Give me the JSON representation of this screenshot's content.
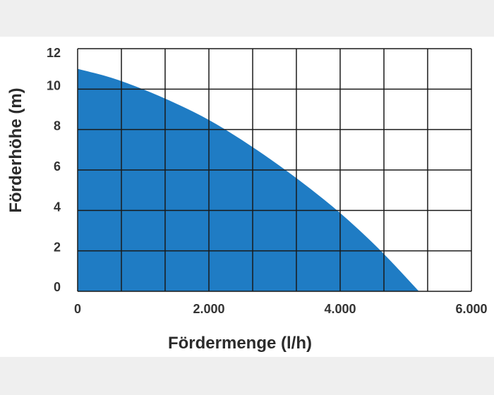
{
  "chart_data": {
    "type": "area",
    "title": "",
    "xlabel": "Fördermenge (l/h)",
    "ylabel": "Förderhöhe (m)",
    "xlim": [
      0,
      6000
    ],
    "ylim": [
      0,
      12
    ],
    "x_tick_labels": [
      {
        "value": 0,
        "label": "0"
      },
      {
        "value": 2000,
        "label": "2.000"
      },
      {
        "value": 4000,
        "label": "4.000"
      },
      {
        "value": 6000,
        "label": "6.000"
      }
    ],
    "y_tick_labels": [
      {
        "value": 0,
        "label": "0"
      },
      {
        "value": 2,
        "label": "2"
      },
      {
        "value": 4,
        "label": "4"
      },
      {
        "value": 6,
        "label": "6"
      },
      {
        "value": 8,
        "label": "8"
      },
      {
        "value": 10,
        "label": "10"
      },
      {
        "value": 12,
        "label": "12"
      }
    ],
    "x_grid": [
      0,
      667,
      1333,
      2000,
      2667,
      3333,
      4000,
      4667,
      5333,
      6000
    ],
    "y_grid": [
      0,
      2,
      4,
      6,
      8,
      10,
      12
    ],
    "grid": true,
    "series": [
      {
        "color": "#1f7cc4",
        "points": [
          {
            "x": 0,
            "y": 11.0
          },
          {
            "x": 500,
            "y": 10.6
          },
          {
            "x": 1000,
            "y": 10.0
          },
          {
            "x": 1500,
            "y": 9.3
          },
          {
            "x": 2000,
            "y": 8.5
          },
          {
            "x": 2500,
            "y": 7.5
          },
          {
            "x": 3000,
            "y": 6.4
          },
          {
            "x": 3500,
            "y": 5.2
          },
          {
            "x": 4000,
            "y": 3.9
          },
          {
            "x": 4500,
            "y": 2.4
          },
          {
            "x": 4800,
            "y": 1.4
          },
          {
            "x": 5000,
            "y": 0.7
          },
          {
            "x": 5200,
            "y": 0.0
          }
        ]
      }
    ]
  }
}
